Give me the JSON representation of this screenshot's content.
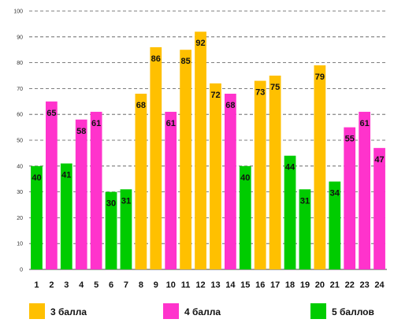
{
  "chart_data": {
    "type": "bar",
    "categories": [
      "1",
      "2",
      "3",
      "4",
      "5",
      "6",
      "7",
      "8",
      "9",
      "10",
      "11",
      "12",
      "13",
      "14",
      "15",
      "16",
      "17",
      "18",
      "19",
      "20",
      "21",
      "22",
      "23",
      "24"
    ],
    "values": [
      40,
      65,
      41,
      58,
      61,
      30,
      31,
      68,
      86,
      61,
      85,
      92,
      72,
      68,
      40,
      73,
      75,
      44,
      31,
      79,
      34,
      55,
      61,
      47
    ],
    "groups": [
      "5",
      "4",
      "5",
      "4",
      "4",
      "5",
      "5",
      "3",
      "3",
      "4",
      "3",
      "3",
      "3",
      "4",
      "5",
      "3",
      "3",
      "5",
      "5",
      "3",
      "5",
      "4",
      "4",
      "4"
    ],
    "ylim": [
      0,
      100
    ],
    "yticks": [
      "0",
      "10",
      "20",
      "30",
      "40",
      "50",
      "60",
      "70",
      "80",
      "90",
      "100"
    ],
    "grid": true,
    "legend_position": "bottom",
    "legend": [
      {
        "key": "3",
        "label": "3 балла",
        "color": "#FFC000"
      },
      {
        "key": "4",
        "label": "4 балла",
        "color": "#FF33CC"
      },
      {
        "key": "5",
        "label": "5 баллов",
        "color": "#00CC00"
      }
    ]
  }
}
